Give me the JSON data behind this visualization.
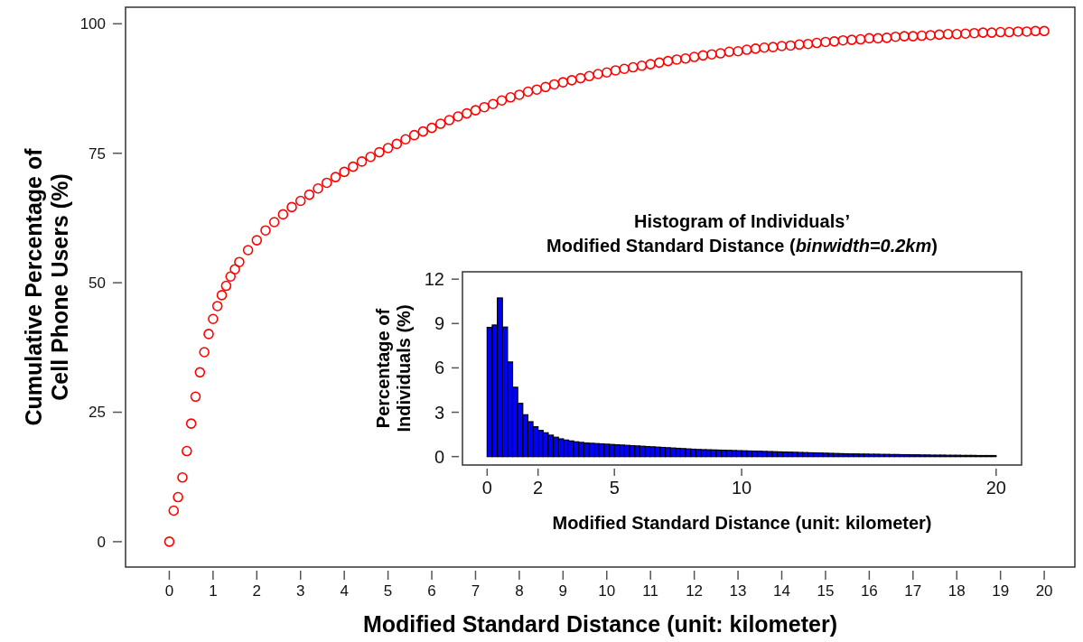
{
  "chart_data": [
    {
      "type": "scatter",
      "xlabel": "Modified Standard Distance (unit: kilometer)",
      "ylabel": "Cumulative Percentage of Cell Phone Users (%)",
      "marker": "circle",
      "color": "#ff0000",
      "x": [
        0,
        0.1,
        0.2,
        0.3,
        0.4,
        0.5,
        0.6,
        0.7,
        0.8,
        0.9,
        1.0,
        1.1,
        1.2,
        1.3,
        1.4,
        1.5,
        1.6,
        1.8,
        2.0,
        2.2,
        2.4,
        2.6,
        2.8,
        3.0,
        3.2,
        3.4,
        3.6,
        3.8,
        4.0,
        4.2,
        4.4,
        4.6,
        4.8,
        5.0,
        5.2,
        5.4,
        5.6,
        5.8,
        6.0,
        6.2,
        6.4,
        6.6,
        6.8,
        7.0,
        7.2,
        7.4,
        7.6,
        7.8,
        8.0,
        8.2,
        8.4,
        8.6,
        8.8,
        9.0,
        9.2,
        9.4,
        9.6,
        9.8,
        10.0,
        10.2,
        10.4,
        10.6,
        10.8,
        11.0,
        11.2,
        11.4,
        11.6,
        11.8,
        12.0,
        12.2,
        12.4,
        12.6,
        12.8,
        13.0,
        13.2,
        13.4,
        13.6,
        13.8,
        14.0,
        14.2,
        14.4,
        14.6,
        14.8,
        15.0,
        15.2,
        15.4,
        15.6,
        15.8,
        16.0,
        16.2,
        16.4,
        16.6,
        16.8,
        17.0,
        17.2,
        17.4,
        17.6,
        17.8,
        18.0,
        18.2,
        18.4,
        18.6,
        18.8,
        19.0,
        19.2,
        19.4,
        19.6,
        19.8,
        20.0
      ],
      "values": [
        0,
        6.0,
        8.6,
        12.4,
        17.5,
        22.8,
        28.0,
        32.7,
        36.6,
        40.1,
        43.0,
        45.5,
        47.6,
        49.4,
        51.2,
        52.6,
        54.0,
        56.3,
        58.2,
        60.1,
        61.7,
        63.2,
        64.6,
        65.8,
        67.0,
        68.2,
        69.3,
        70.4,
        71.4,
        72.4,
        73.4,
        74.3,
        75.2,
        76.0,
        76.8,
        77.7,
        78.5,
        79.2,
        79.9,
        80.7,
        81.4,
        82.1,
        82.7,
        83.3,
        83.9,
        84.5,
        85.2,
        85.8,
        86.3,
        86.9,
        87.3,
        87.8,
        88.3,
        88.7,
        89.1,
        89.5,
        89.9,
        90.3,
        90.6,
        91.0,
        91.3,
        91.6,
        91.9,
        92.2,
        92.5,
        92.8,
        93.1,
        93.3,
        93.6,
        93.9,
        94.1,
        94.3,
        94.6,
        94.7,
        95.0,
        95.2,
        95.4,
        95.5,
        95.7,
        95.8,
        96.0,
        96.1,
        96.3,
        96.5,
        96.6,
        96.8,
        96.9,
        97.0,
        97.2,
        97.2,
        97.3,
        97.5,
        97.6,
        97.6,
        97.7,
        97.8,
        97.9,
        98.0,
        98.0,
        98.1,
        98.2,
        98.3,
        98.3,
        98.4,
        98.4,
        98.5,
        98.5,
        98.6,
        98.6
      ],
      "xlim": [
        -1.0,
        20.7
      ],
      "ylim": [
        -4.9,
        103.2
      ],
      "xticks": [
        0,
        1,
        2,
        3,
        4,
        5,
        6,
        7,
        8,
        9,
        10,
        11,
        12,
        13,
        14,
        15,
        16,
        17,
        18,
        19,
        20
      ],
      "yticks": [
        0,
        25,
        50,
        75,
        100
      ]
    },
    {
      "type": "histogram",
      "title": "Histogram of Individuals’",
      "subtitle": "Modified Standard Distance (binwidth=0.2km)",
      "xlabel": "Modified Standard Distance (unit: kilometer)",
      "ylabel": "Percentage of Individuals (%)",
      "color": "#0000ff",
      "bins": [
        0,
        0.2,
        0.4,
        0.6,
        0.8,
        1.0,
        1.2,
        1.4,
        1.6,
        1.8,
        2.0,
        2.2,
        2.4,
        2.6,
        2.8,
        3.0,
        3.2,
        3.4,
        3.6,
        3.8,
        4.0,
        4.2,
        4.4,
        4.6,
        4.8,
        5.0,
        5.2,
        5.4,
        5.6,
        5.8,
        6.0,
        6.2,
        6.4,
        6.6,
        6.8,
        7.0,
        7.2,
        7.4,
        7.6,
        7.8,
        8.0,
        8.2,
        8.4,
        8.6,
        8.8,
        9.0,
        9.2,
        9.4,
        9.6,
        9.8,
        10.0,
        10.2,
        10.4,
        10.6,
        10.8,
        11.0,
        11.2,
        11.4,
        11.6,
        11.8,
        12.0,
        12.2,
        12.4,
        12.6,
        12.8,
        13.0,
        13.2,
        13.4,
        13.6,
        13.8,
        14.0,
        14.2,
        14.4,
        14.6,
        14.8,
        15.0,
        15.2,
        15.4,
        15.6,
        15.8,
        16.0,
        16.2,
        16.4,
        16.6,
        16.8,
        17.0,
        17.2,
        17.4,
        17.6,
        17.8,
        18.0,
        18.2,
        18.4,
        18.6,
        18.8,
        19.0,
        19.2,
        19.4,
        19.6,
        19.8,
        20.0
      ],
      "values": [
        8.74,
        8.9,
        10.73,
        8.76,
        6.4,
        4.69,
        3.6,
        2.83,
        2.36,
        2.02,
        1.77,
        1.61,
        1.45,
        1.31,
        1.2,
        1.12,
        1.06,
        1.0,
        0.96,
        0.92,
        0.9,
        0.88,
        0.86,
        0.84,
        0.82,
        0.8,
        0.78,
        0.76,
        0.74,
        0.72,
        0.7,
        0.68,
        0.66,
        0.64,
        0.62,
        0.6,
        0.58,
        0.56,
        0.54,
        0.52,
        0.5,
        0.48,
        0.47,
        0.46,
        0.45,
        0.44,
        0.43,
        0.42,
        0.41,
        0.4,
        0.39,
        0.38,
        0.37,
        0.36,
        0.35,
        0.34,
        0.33,
        0.32,
        0.31,
        0.3,
        0.29,
        0.28,
        0.27,
        0.26,
        0.25,
        0.24,
        0.23,
        0.22,
        0.21,
        0.2,
        0.19,
        0.18,
        0.18,
        0.17,
        0.17,
        0.16,
        0.16,
        0.15,
        0.15,
        0.14,
        0.14,
        0.13,
        0.13,
        0.12,
        0.12,
        0.11,
        0.11,
        0.1,
        0.1,
        0.1,
        0.09,
        0.09,
        0.09,
        0.08,
        0.08,
        0.08,
        0.07,
        0.07,
        0.07,
        0.07
      ],
      "xlim": [
        -0.97,
        21.0
      ],
      "ylim": [
        -0.57,
        12.5
      ],
      "xticks": [
        0,
        2,
        5,
        10,
        20
      ],
      "yticks": [
        0,
        3,
        6,
        9,
        12
      ]
    }
  ]
}
